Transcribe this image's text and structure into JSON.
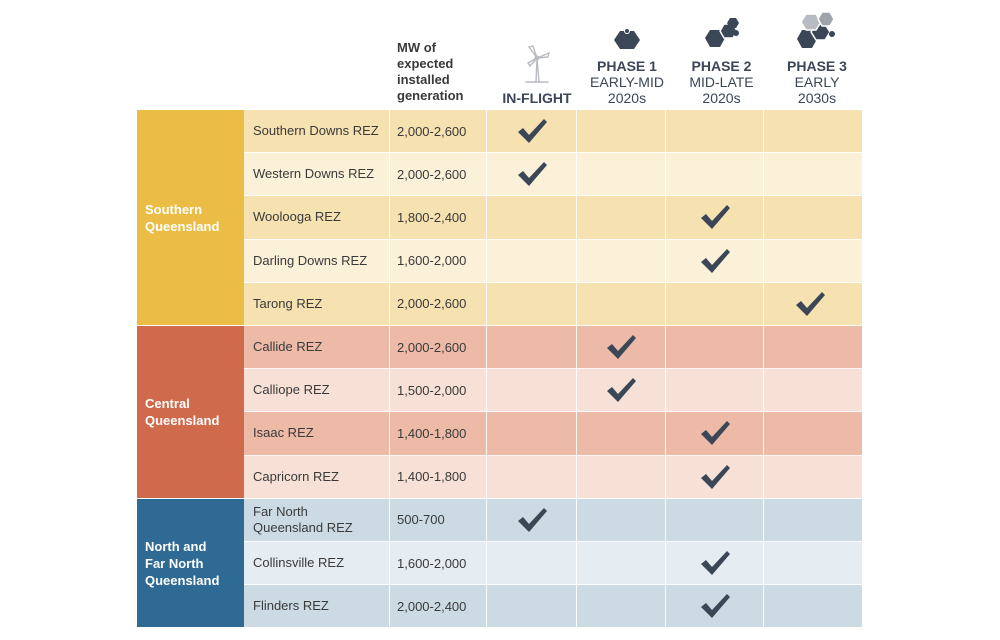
{
  "header": {
    "mw_label": "MW of\nexpected\ninstalled\ngeneration",
    "inflight": "IN-FLIGHT",
    "phase1": {
      "title": "PHASE 1",
      "line1": "EARLY-MID",
      "line2": "2020s"
    },
    "phase2": {
      "title": "PHASE 2",
      "line1": "MID-LATE",
      "line2": "2020s"
    },
    "phase3": {
      "title": "PHASE 3",
      "line1": "EARLY",
      "line2": "2030s"
    }
  },
  "icons": {
    "inflight": "wind-turbine-icon",
    "phase1": "hexagon-single-icon",
    "phase2": "hexagon-cluster-icon",
    "phase3": "hexagon-large-cluster-icon",
    "check": "checkmark-icon"
  },
  "colors": {
    "south_region": "#ebbd46",
    "south_dark": "#f6e1b0",
    "south_light": "#fbf0d8",
    "central_region": "#d06a4c",
    "central_dark": "#ecbaa6",
    "central_light": "#f7e0d6",
    "north_region": "#2e6a93",
    "north_dark": "#ccdae4",
    "north_light": "#e5ecf2",
    "check": "#3b4656"
  },
  "regions": [
    {
      "name": "Southern\nQueensland",
      "rows": [
        {
          "name": "Southern Downs REZ",
          "mw": "2,000-2,600",
          "checks": [
            true,
            false,
            false,
            false
          ]
        },
        {
          "name": "Western Downs REZ",
          "mw": "2,000-2,600",
          "checks": [
            true,
            false,
            false,
            false
          ]
        },
        {
          "name": "Woolooga REZ",
          "mw": "1,800-2,400",
          "checks": [
            false,
            false,
            true,
            false
          ]
        },
        {
          "name": "Darling Downs REZ",
          "mw": "1,600-2,000",
          "checks": [
            false,
            false,
            true,
            false
          ]
        },
        {
          "name": "Tarong REZ",
          "mw": "2,000-2,600",
          "checks": [
            false,
            false,
            false,
            true
          ]
        }
      ]
    },
    {
      "name": "Central\nQueensland",
      "rows": [
        {
          "name": "Callide REZ",
          "mw": "2,000-2,600",
          "checks": [
            false,
            true,
            false,
            false
          ]
        },
        {
          "name": "Calliope REZ",
          "mw": "1,500-2,000",
          "checks": [
            false,
            true,
            false,
            false
          ]
        },
        {
          "name": "Isaac REZ",
          "mw": "1,400-1,800",
          "checks": [
            false,
            false,
            true,
            false
          ]
        },
        {
          "name": "Capricorn REZ",
          "mw": "1,400-1,800",
          "checks": [
            false,
            false,
            true,
            false
          ]
        }
      ]
    },
    {
      "name": "North and\nFar North\nQueensland",
      "rows": [
        {
          "name": "Far North\nQueensland REZ",
          "mw": "500-700",
          "checks": [
            true,
            false,
            false,
            false
          ]
        },
        {
          "name": "Collinsville REZ",
          "mw": "1,600-2,000",
          "checks": [
            false,
            false,
            true,
            false
          ]
        },
        {
          "name": "Flinders REZ",
          "mw": "2,000-2,400",
          "checks": [
            false,
            false,
            true,
            false
          ]
        }
      ]
    }
  ]
}
